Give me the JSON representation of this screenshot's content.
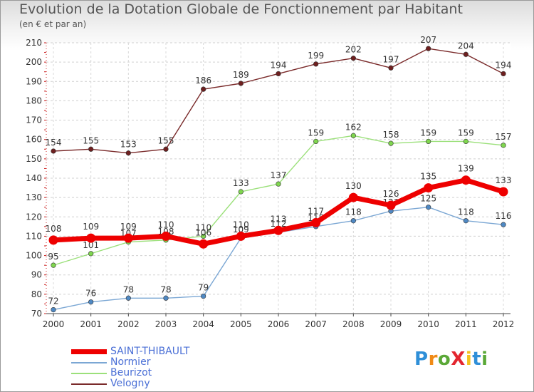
{
  "title": "Evolution de la Dotation Globale de Fonctionnement par Habitant",
  "subtitle": "(en € et par an)",
  "brand": "ProXiti",
  "chart_data": {
    "type": "line",
    "title": "Evolution de la Dotation Globale de Fonctionnement par Habitant",
    "ylabel": "(en € et par an)",
    "xlabel": "",
    "ylim": [
      70,
      210
    ],
    "yticks": [
      70,
      80,
      90,
      100,
      110,
      120,
      130,
      140,
      150,
      160,
      170,
      180,
      190,
      200,
      210
    ],
    "categories": [
      "2000",
      "2001",
      "2002",
      "2003",
      "2004",
      "2005",
      "2006",
      "2007",
      "2008",
      "2009",
      "2010",
      "2011",
      "2012"
    ],
    "grid": true,
    "legend_position": "bottom-left",
    "series": [
      {
        "name": "Velogny",
        "color": "#7a2a2a",
        "marker": "#6e1f1f",
        "values": [
          154,
          155,
          153,
          155,
          186,
          189,
          194,
          199,
          202,
          197,
          207,
          204,
          194
        ]
      },
      {
        "name": "Beurizot",
        "color": "#9be07a",
        "marker": "#7fd64e",
        "values": [
          95,
          101,
          107,
          108,
          110,
          133,
          137,
          159,
          162,
          158,
          159,
          159,
          157
        ]
      },
      {
        "name": "Normier",
        "color": "#7ba7d4",
        "marker": "#4f89c4",
        "values": [
          72,
          76,
          78,
          78,
          79,
          109,
          112,
          115,
          118,
          123,
          125,
          118,
          116
        ]
      },
      {
        "name": "SAINT-THIBAULT",
        "color": "#ee0000",
        "marker": "#ee0000",
        "values": [
          108,
          109,
          109,
          110,
          106,
          110,
          113,
          117,
          130,
          126,
          135,
          139,
          133
        ]
      }
    ]
  }
}
